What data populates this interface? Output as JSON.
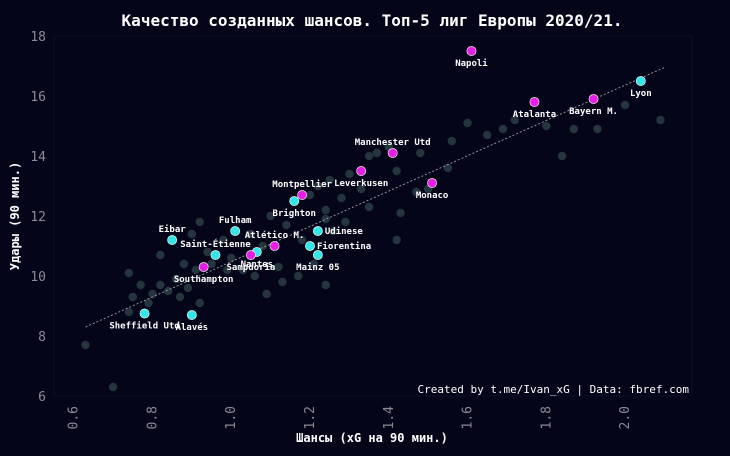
{
  "chart_data": {
    "type": "scatter",
    "title": "Качество созданных шансов. Топ-5 лиг Европы 2020/21.",
    "xlabel": "Шансы (xG на 90 мин.)",
    "ylabel": "Удары (90 мин.)",
    "xlim": [
      0.55,
      2.17
    ],
    "ylim": [
      6,
      18
    ],
    "xticks": [
      "0.6",
      "0.8",
      "1.0",
      "1.2",
      "1.4",
      "1.6",
      "1.8",
      "2.0"
    ],
    "yticks": [
      "6",
      "8",
      "10",
      "12",
      "14",
      "16",
      "18"
    ],
    "credit": "Created by t.me/Ivan_xG | Data: fbref.com",
    "colors": {
      "background": "#05051a",
      "plot_background": "#050519",
      "other": "#2c3e45",
      "cyan": "#33e6e6",
      "magenta": "#e61ee6",
      "trend": "#a0a0a8"
    },
    "trend": {
      "x": [
        0.63,
        2.1
      ],
      "y": [
        8.3,
        16.95
      ]
    },
    "labeled": [
      {
        "name": "Napoli",
        "x": 1.61,
        "y": 17.5,
        "group": "magenta",
        "pos": "below"
      },
      {
        "name": "Lyon",
        "x": 2.04,
        "y": 16.5,
        "group": "cyan",
        "pos": "below"
      },
      {
        "name": "Bayern M.",
        "x": 1.92,
        "y": 15.9,
        "group": "magenta",
        "pos": "below"
      },
      {
        "name": "Atalanta",
        "x": 1.77,
        "y": 15.8,
        "group": "magenta",
        "pos": "below"
      },
      {
        "name": "Manchester Utd",
        "x": 1.41,
        "y": 14.1,
        "group": "magenta",
        "pos": "above"
      },
      {
        "name": "Leverkusen",
        "x": 1.33,
        "y": 13.5,
        "group": "magenta",
        "pos": "below"
      },
      {
        "name": "Monaco",
        "x": 1.51,
        "y": 13.1,
        "group": "magenta",
        "pos": "below"
      },
      {
        "name": "Montpellier",
        "x": 1.18,
        "y": 12.7,
        "group": "magenta",
        "pos": "above"
      },
      {
        "name": "Brighton",
        "x": 1.16,
        "y": 12.5,
        "group": "cyan",
        "pos": "below"
      },
      {
        "name": "Fulham",
        "x": 1.01,
        "y": 11.5,
        "group": "cyan",
        "pos": "above"
      },
      {
        "name": "Udinese",
        "x": 1.22,
        "y": 11.5,
        "group": "cyan",
        "pos": "right"
      },
      {
        "name": "Eibar",
        "x": 0.85,
        "y": 11.2,
        "group": "cyan",
        "pos": "above"
      },
      {
        "name": "Atlético M.",
        "x": 1.11,
        "y": 11.0,
        "group": "magenta",
        "pos": "above"
      },
      {
        "name": "Fiorentina",
        "x": 1.2,
        "y": 11.0,
        "group": "cyan",
        "pos": "right"
      },
      {
        "name": "Saint-Étienne",
        "x": 0.96,
        "y": 10.7,
        "group": "cyan",
        "pos": "above"
      },
      {
        "name": "Nantes",
        "x": 1.065,
        "y": 10.8,
        "group": "cyan",
        "pos": "below"
      },
      {
        "name": "Sampdoria",
        "x": 1.05,
        "y": 10.7,
        "group": "magenta",
        "pos": "below"
      },
      {
        "name": "Mainz 05",
        "x": 1.22,
        "y": 10.7,
        "group": "cyan",
        "pos": "below"
      },
      {
        "name": "Southampton",
        "x": 0.93,
        "y": 10.3,
        "group": "magenta",
        "pos": "below"
      },
      {
        "name": "Sheffield Utd",
        "x": 0.78,
        "y": 8.75,
        "group": "cyan",
        "pos": "below"
      },
      {
        "name": "Alavés",
        "x": 0.9,
        "y": 8.7,
        "group": "cyan",
        "pos": "below"
      }
    ],
    "others": [
      [
        0.63,
        7.7
      ],
      [
        0.7,
        6.3
      ],
      [
        0.74,
        10.1
      ],
      [
        0.74,
        8.8
      ],
      [
        0.75,
        9.3
      ],
      [
        0.77,
        9.7
      ],
      [
        0.79,
        9.1
      ],
      [
        0.8,
        9.4
      ],
      [
        0.82,
        10.7
      ],
      [
        0.82,
        9.7
      ],
      [
        0.84,
        9.5
      ],
      [
        0.86,
        9.9
      ],
      [
        0.87,
        9.3
      ],
      [
        0.88,
        10.4
      ],
      [
        0.89,
        9.6
      ],
      [
        0.9,
        11.4
      ],
      [
        0.91,
        10.2
      ],
      [
        0.92,
        11.8
      ],
      [
        0.92,
        9.1
      ],
      [
        0.94,
        10.8
      ],
      [
        0.95,
        10.4
      ],
      [
        0.98,
        11.2
      ],
      [
        0.99,
        10.2
      ],
      [
        1.0,
        10.6
      ],
      [
        1.03,
        10.2
      ],
      [
        1.05,
        11.4
      ],
      [
        1.06,
        10.0
      ],
      [
        1.08,
        11.0
      ],
      [
        1.09,
        9.4
      ],
      [
        1.1,
        12.0
      ],
      [
        1.12,
        10.3
      ],
      [
        1.13,
        9.8
      ],
      [
        1.14,
        11.7
      ],
      [
        1.17,
        10.0
      ],
      [
        1.18,
        11.2
      ],
      [
        1.2,
        12.7
      ],
      [
        1.21,
        10.4
      ],
      [
        1.22,
        13.0
      ],
      [
        1.24,
        12.2
      ],
      [
        1.24,
        11.9
      ],
      [
        1.24,
        9.7
      ],
      [
        1.25,
        13.2
      ],
      [
        1.26,
        11.5
      ],
      [
        1.28,
        12.6
      ],
      [
        1.29,
        11.8
      ],
      [
        1.3,
        13.4
      ],
      [
        1.33,
        12.9
      ],
      [
        1.35,
        12.3
      ],
      [
        1.35,
        14.0
      ],
      [
        1.37,
        14.1
      ],
      [
        1.4,
        14.3
      ],
      [
        1.42,
        13.5
      ],
      [
        1.42,
        11.2
      ],
      [
        1.43,
        12.1
      ],
      [
        1.47,
        12.8
      ],
      [
        1.48,
        14.1
      ],
      [
        1.5,
        12.9
      ],
      [
        1.55,
        13.6
      ],
      [
        1.56,
        14.5
      ],
      [
        1.6,
        15.1
      ],
      [
        1.65,
        14.7
      ],
      [
        1.69,
        14.9
      ],
      [
        1.72,
        15.2
      ],
      [
        1.8,
        15.0
      ],
      [
        1.84,
        14.0
      ],
      [
        1.87,
        14.9
      ],
      [
        1.93,
        14.9
      ],
      [
        2.0,
        15.7
      ],
      [
        2.09,
        15.2
      ]
    ]
  }
}
